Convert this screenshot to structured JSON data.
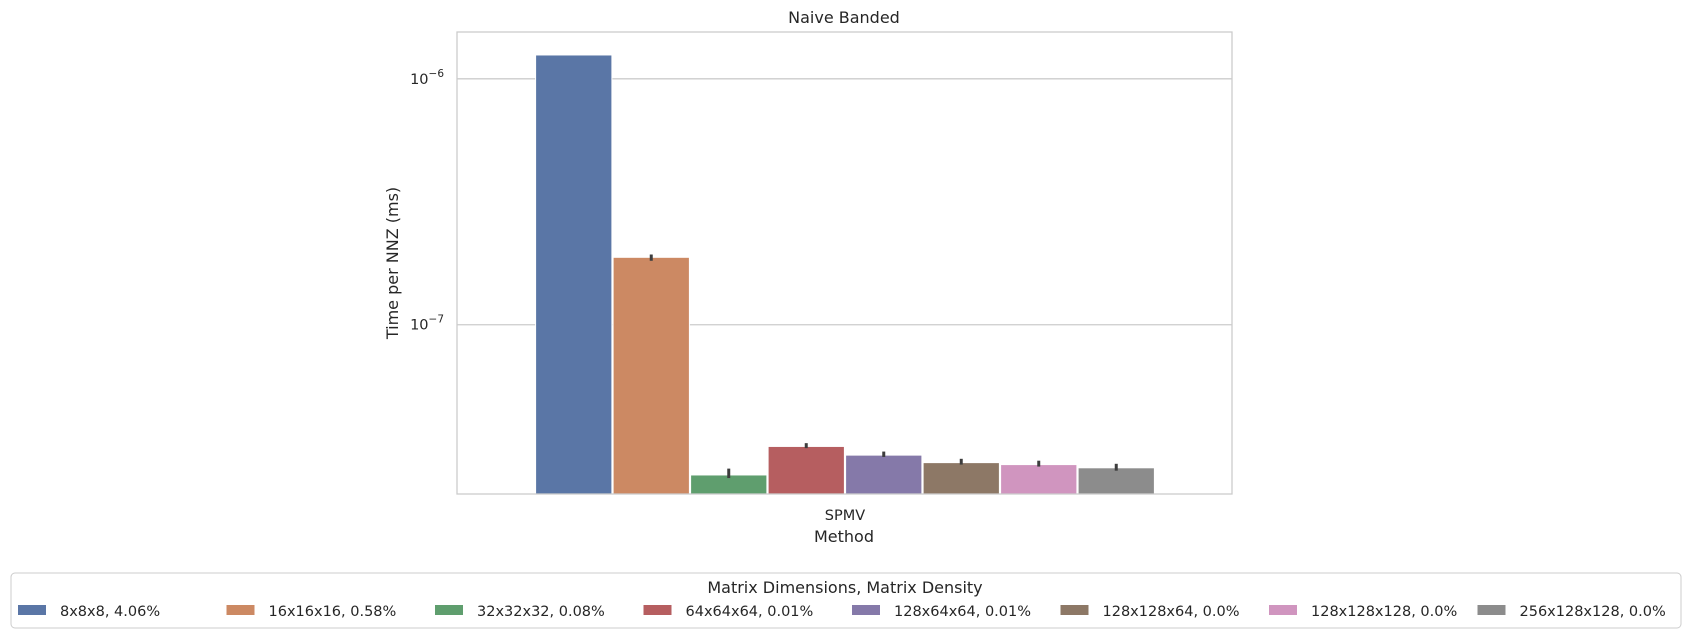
{
  "chart_data": {
    "type": "bar",
    "title": "Naive Banded",
    "xlabel": "Method",
    "ylabel": "Time per NNZ (ms)",
    "yscale": "log",
    "ylim": [
      2.05e-08,
      1.55e-06
    ],
    "ytick_values": [
      1e-07,
      1e-06
    ],
    "ytick_labels": [
      {
        "base": "10",
        "exp": "−7"
      },
      {
        "base": "10",
        "exp": "−6"
      }
    ],
    "grid": "horizontal",
    "categories": [
      "SPMV"
    ],
    "legend": {
      "title": "Matrix Dimensions, Matrix Density",
      "placement": "bottom-center",
      "columns": 8
    },
    "series": [
      {
        "name": "8x8x8, 4.06%",
        "color": "#5a76a6",
        "values": [
          1.25e-06
        ],
        "error": [
          1.25e-06,
          1.25e-06
        ]
      },
      {
        "name": "16x16x16, 0.58%",
        "color": "#cc8963",
        "values": [
          1.88e-07
        ],
        "error": [
          1.82e-07,
          1.93e-07
        ]
      },
      {
        "name": "32x32x32, 0.08%",
        "color": "#5f9e6e",
        "values": [
          2.45e-08
        ],
        "error": [
          2.38e-08,
          2.6e-08
        ]
      },
      {
        "name": "64x64x64, 0.01%",
        "color": "#b65e60",
        "values": [
          3.2e-08
        ],
        "error": [
          3.15e-08,
          3.3e-08
        ]
      },
      {
        "name": "128x64x64, 0.01%",
        "color": "#8579a9",
        "values": [
          2.95e-08
        ],
        "error": [
          2.9e-08,
          3.05e-08
        ]
      },
      {
        "name": "128x128x64, 0.0%",
        "color": "#8d7866",
        "values": [
          2.75e-08
        ],
        "error": [
          2.7e-08,
          2.85e-08
        ]
      },
      {
        "name": "128x128x128, 0.0%",
        "color": "#d095bf",
        "values": [
          2.7e-08
        ],
        "error": [
          2.65e-08,
          2.8e-08
        ]
      },
      {
        "name": "256x128x128, 0.0%",
        "color": "#8c8c8c",
        "values": [
          2.62e-08
        ],
        "error": [
          2.55e-08,
          2.72e-08
        ]
      }
    ]
  }
}
